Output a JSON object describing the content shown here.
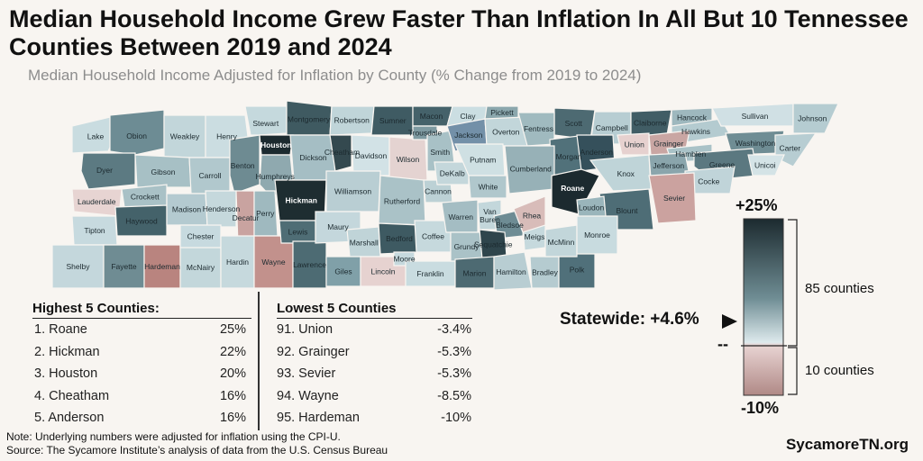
{
  "title": "Median Household Income Grew Faster Than Inflation In All But 10 Tennessee Counties Between 2019 and 2024",
  "subtitle": "Median Household Income Adjusted for Inflation by County (% Change from 2019 to 2024)",
  "colors": {
    "background": "#f8f5f1",
    "positive_high": "#1c2a2f",
    "positive_low": "#dde9ec",
    "negative_low": "#e8d4d3",
    "negative_high": "#b08986"
  },
  "highest": {
    "heading": "Highest 5 Counties:",
    "rows": [
      {
        "rank_name": "1. Roane",
        "value": "25%"
      },
      {
        "rank_name": "2. Hickman",
        "value": "22%"
      },
      {
        "rank_name": "3. Houston",
        "value": "20%"
      },
      {
        "rank_name": "4. Cheatham",
        "value": "16%"
      },
      {
        "rank_name": "5. Anderson",
        "value": "16%"
      }
    ]
  },
  "lowest": {
    "heading": "Lowest 5 Counties",
    "rows": [
      {
        "rank_name": "91. Union",
        "value": "-3.4%"
      },
      {
        "rank_name": "92. Grainger",
        "value": "-5.3%"
      },
      {
        "rank_name": "93. Sevier",
        "value": "-5.3%"
      },
      {
        "rank_name": "94. Wayne",
        "value": "-8.5%"
      },
      {
        "rank_name": "95. Hardeman",
        "value": "-10%"
      }
    ]
  },
  "legend": {
    "max_label": "+25%",
    "min_label": "-10%",
    "zero_mark": "--",
    "statewide_label": "Statewide: +4.6%",
    "above_count": "85 counties",
    "below_count": "10 counties"
  },
  "notes": {
    "note": "Note: Underlying numbers were adjusted for inflation using the CPI-U.",
    "source": "Source: The Sycamore Institute’s analysis of data from the U.S. Census Bureau"
  },
  "brand": "SycamoreTN.org",
  "counties": [
    {
      "name": "Lake",
      "shade": "#c9dce0",
      "label": "Lake"
    },
    {
      "name": "Obion",
      "shade": "#6d8c94",
      "label": "Obion"
    },
    {
      "name": "Weakley",
      "shade": "#c2d6da",
      "label": "Weakley"
    },
    {
      "name": "Henry",
      "shade": "#cbdde1",
      "label": "Henry"
    },
    {
      "name": "Stewart",
      "shade": "#c5d9dd",
      "label": "Stewart"
    },
    {
      "name": "Montgomery",
      "shade": "#3f5a61",
      "label": "Montgomery"
    },
    {
      "name": "Robertson",
      "shade": "#c0d5d9",
      "label": "Robertson"
    },
    {
      "name": "Sumner",
      "shade": "#3f5b63",
      "label": "Sumner"
    },
    {
      "name": "Macon",
      "shade": "#45626a",
      "label": "Macon"
    },
    {
      "name": "Clay",
      "shade": "#cbdee2",
      "label": "Clay"
    },
    {
      "name": "Pickett",
      "shade": "#8ba7ad",
      "label": "Pickett"
    },
    {
      "name": "Scott",
      "shade": "#4d6a72",
      "label": "Scott"
    },
    {
      "name": "Campbell",
      "shade": "#b7cdd2",
      "label": "Campbell"
    },
    {
      "name": "Claiborne",
      "shade": "#415d65",
      "label": "Claiborne"
    },
    {
      "name": "Hancock",
      "shade": "#9eb8be",
      "label": "Hancock"
    },
    {
      "name": "Hawkins",
      "shade": "#b4cbd0",
      "label": "Hawkins"
    },
    {
      "name": "Sullivan",
      "shade": "#d0e0e4",
      "label": "Sullivan"
    },
    {
      "name": "Johnson",
      "shade": "#b5ccd1",
      "label": "Johnson"
    },
    {
      "name": "Dyer",
      "shade": "#5c7a82",
      "label": "Dyer"
    },
    {
      "name": "Gibson",
      "shade": "#a7c0c5",
      "label": "Gibson"
    },
    {
      "name": "Carroll",
      "shade": "#b1c8cd",
      "label": "Carroll"
    },
    {
      "name": "Benton",
      "shade": "#6e8b92",
      "label": "Benton"
    },
    {
      "name": "Houston",
      "shade": "#1c2a2f",
      "label": "Houston"
    },
    {
      "name": "Humphreys",
      "shade": "#8fa9af",
      "label": "Humphreys"
    },
    {
      "name": "Dickson",
      "shade": "#a5bec4",
      "label": "Dickson"
    },
    {
      "name": "Cheatham",
      "shade": "#34494f",
      "label": "Cheatham"
    },
    {
      "name": "Davidson",
      "shade": "#d2e2e6",
      "label": "Davidson"
    },
    {
      "name": "Wilson",
      "shade": "#e4d3d1",
      "label": "Wilson"
    },
    {
      "name": "Trousdale",
      "shade": "#7e9aa1",
      "label": "Trousdale"
    },
    {
      "name": "Smith",
      "shade": "#a8c1c6",
      "label": "Smith"
    },
    {
      "name": "Jackson",
      "shade": "#7390a8",
      "label": "Jackson"
    },
    {
      "name": "Overton",
      "shade": "#c2d6da",
      "label": "Overton"
    },
    {
      "name": "Fentress",
      "shade": "#a0babf",
      "label": "Fentress"
    },
    {
      "name": "Morgan",
      "shade": "#51717a",
      "label": "Morgan"
    },
    {
      "name": "Anderson",
      "shade": "#35505b",
      "label": "Anderson"
    },
    {
      "name": "Union",
      "shade": "#e6d1cf",
      "label": "Union"
    },
    {
      "name": "Grainger",
      "shade": "#c9a6a3",
      "label": "Grainger"
    },
    {
      "name": "Hamblen",
      "shade": "#a9c2c7",
      "label": "Hamblen"
    },
    {
      "name": "Washington",
      "shade": "#6f8d94",
      "label": "Washington"
    },
    {
      "name": "Carter",
      "shade": "#b7cdd2",
      "label": "Carter"
    },
    {
      "name": "Greene",
      "shade": "#5b7880",
      "label": "Greene"
    },
    {
      "name": "Unicoi",
      "shade": "#d4e3e6",
      "label": "Unicoi"
    },
    {
      "name": "Lauderdale",
      "shade": "#e7d4d2",
      "label": "Lauderdale"
    },
    {
      "name": "Crockett",
      "shade": "#a9c1c6",
      "label": "Crockett"
    },
    {
      "name": "Haywood",
      "shade": "#44626a",
      "label": "Haywood"
    },
    {
      "name": "Madison",
      "shade": "#b4cad0",
      "label": "Madison"
    },
    {
      "name": "Henderson",
      "shade": "#c5d8dc",
      "label": "Henderson"
    },
    {
      "name": "Decatur",
      "shade": "#c9a3a0",
      "label": "Decatur"
    },
    {
      "name": "Perry",
      "shade": "#9fb9bf",
      "label": "Perry"
    },
    {
      "name": "Hickman",
      "shade": "#1e2d31",
      "label": "Hickman"
    },
    {
      "name": "Williamson",
      "shade": "#b9ced3",
      "label": "Williamson"
    },
    {
      "name": "Rutherford",
      "shade": "#aac2c7",
      "label": "Rutherford"
    },
    {
      "name": "Cannon",
      "shade": "#bcd1d5",
      "label": "Cannon"
    },
    {
      "name": "DeKalb",
      "shade": "#c4d7db",
      "label": "DeKalb"
    },
    {
      "name": "Putnam",
      "shade": "#cfe0e3",
      "label": "Putnam"
    },
    {
      "name": "White",
      "shade": "#b0c7cc",
      "label": "White"
    },
    {
      "name": "Cumberland",
      "shade": "#97b1b7",
      "label": "Cumberland"
    },
    {
      "name": "Roane",
      "shade": "#1c2a2f",
      "label": "Roane"
    },
    {
      "name": "Knox",
      "shade": "#bfd4d8",
      "label": "Knox"
    },
    {
      "name": "Jefferson",
      "shade": "#8aa5ac",
      "label": "Jefferson"
    },
    {
      "name": "Cocke",
      "shade": "#c0d4d9",
      "label": "Cocke"
    },
    {
      "name": "Sevier",
      "shade": "#cba29f",
      "label": "Sevier"
    },
    {
      "name": "Blount",
      "shade": "#4e6d76",
      "label": "Blount"
    },
    {
      "name": "Loudon",
      "shade": "#9ab5bb",
      "label": "Loudon"
    },
    {
      "name": "Tipton",
      "shade": "#c7dadf",
      "label": "Tipton"
    },
    {
      "name": "Shelby",
      "shade": "#c4d7dc",
      "label": "Shelby"
    },
    {
      "name": "Fayette",
      "shade": "#6f8c93",
      "label": "Fayette"
    },
    {
      "name": "Hardeman",
      "shade": "#b9847f",
      "label": "Hardeman"
    },
    {
      "name": "McNairy",
      "shade": "#c3d7db",
      "label": "McNairy"
    },
    {
      "name": "Chester",
      "shade": "#c7dadf",
      "label": "Chester"
    },
    {
      "name": "Hardin",
      "shade": "#c6d9dd",
      "label": "Hardin"
    },
    {
      "name": "Wayne",
      "shade": "#c2918c",
      "label": "Wayne"
    },
    {
      "name": "Lewis",
      "shade": "#4f6d75",
      "label": "Lewis"
    },
    {
      "name": "Lawrence",
      "shade": "#4d6b73",
      "label": "Lawrence"
    },
    {
      "name": "Maury",
      "shade": "#c4d7dc",
      "label": "Maury"
    },
    {
      "name": "Marshall",
      "shade": "#c0d4d8",
      "label": "Marshall"
    },
    {
      "name": "Giles",
      "shade": "#80a0a8",
      "label": "Giles"
    },
    {
      "name": "Bedford",
      "shade": "#3e5a62",
      "label": "Bedford"
    },
    {
      "name": "Lincoln",
      "shade": "#e6d2d0",
      "label": "Lincoln"
    },
    {
      "name": "Moore",
      "shade": "#c6d9dd",
      "label": "Moore"
    },
    {
      "name": "Coffee",
      "shade": "#c6d9dd",
      "label": "Coffee"
    },
    {
      "name": "Warren",
      "shade": "#a4bdc3",
      "label": "Warren"
    },
    {
      "name": "Franklin",
      "shade": "#c9dce0",
      "label": "Franklin"
    },
    {
      "name": "Grundy",
      "shade": "#aac2c7",
      "label": "Grundy"
    },
    {
      "name": "Van Buren",
      "shade": "#c3d7db",
      "label": "Van\nBuren"
    },
    {
      "name": "Bledsoe",
      "shade": "#6e8c94",
      "label": "Bledsoe"
    },
    {
      "name": "Sequatchie",
      "shade": "#2f454c",
      "label": "Sequatchie"
    },
    {
      "name": "Marion",
      "shade": "#4d6a72",
      "label": "Marion"
    },
    {
      "name": "Hamilton",
      "shade": "#b8cdd2",
      "label": "Hamilton"
    },
    {
      "name": "Bradley",
      "shade": "#b5cbd0",
      "label": "Bradley"
    },
    {
      "name": "Polk",
      "shade": "#50707a",
      "label": "Polk"
    },
    {
      "name": "Meigs",
      "shade": "#c6d9dd",
      "label": "Meigs"
    },
    {
      "name": "Rhea",
      "shade": "#d8bcb9",
      "label": "Rhea"
    },
    {
      "name": "McMinn",
      "shade": "#c2d6da",
      "label": "McMinn"
    },
    {
      "name": "Monroe",
      "shade": "#c8dbdf",
      "label": "Monroe"
    }
  ]
}
